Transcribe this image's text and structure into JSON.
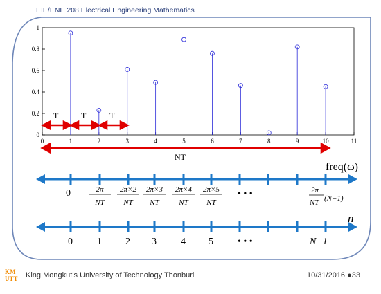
{
  "slide": {
    "header": "EIE/ENE 208 Electrical Engineering Mathematics",
    "footer": "King Mongkut’s University of Technology Thonburi",
    "date_page": "10/31/2016 ●33"
  },
  "chart_data": {
    "type": "stem",
    "x": [
      1,
      2,
      3,
      4,
      5,
      6,
      7,
      8,
      9,
      10
    ],
    "values": [
      0.95,
      0.23,
      0.61,
      0.49,
      0.89,
      0.76,
      0.46,
      0.02,
      0.82,
      0.45
    ],
    "xlim": [
      0,
      11
    ],
    "ylim": [
      0,
      1
    ],
    "xticks": [
      "0",
      "1",
      "2",
      "3",
      "4",
      "5",
      "6",
      "7",
      "8",
      "9",
      "10",
      "11"
    ],
    "yticks": [
      "0",
      "0.2",
      "0.4",
      "0.6",
      "0.8",
      "1"
    ],
    "title": "",
    "xlabel": "",
    "ylabel": ""
  },
  "annotations": {
    "t_label": "T",
    "nt_label": "NT",
    "freq_label": "freq(ω)",
    "n_label": "n",
    "dots": "•  •  •",
    "freq_ticks": [
      {
        "num": "",
        "den": "",
        "plain": "0"
      },
      {
        "num": "2π",
        "den": "NT"
      },
      {
        "num": "2π×2",
        "den": "NT"
      },
      {
        "num": "2π×3",
        "den": "NT"
      },
      {
        "num": "2π×4",
        "den": "NT"
      },
      {
        "num": "2π×5",
        "den": "NT"
      }
    ],
    "freq_last": {
      "num": "2π",
      "den": "NT",
      "suffix": "(N−1)"
    },
    "n_ticks": [
      "0",
      "1",
      "2",
      "3",
      "4",
      "5"
    ],
    "n_last": "N−1"
  }
}
